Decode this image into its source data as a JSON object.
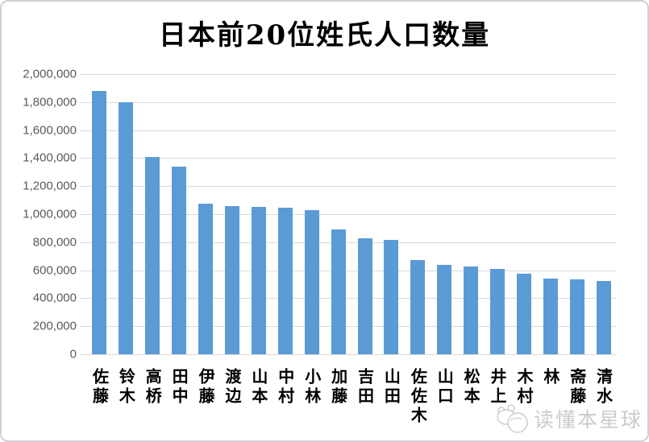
{
  "watermark": {
    "text": "读懂本星球"
  },
  "chart_data": {
    "type": "bar",
    "title": "日本前20位姓氏人口数量",
    "categories": [
      "佐藤",
      "铃木",
      "高桥",
      "田中",
      "伊藤",
      "渡边",
      "山本",
      "中村",
      "小林",
      "加藤",
      "吉田",
      "山田",
      "佐佐木",
      "山口",
      "松本",
      "井上",
      "木村",
      "林",
      "斋藤",
      "清水"
    ],
    "values": [
      1880000,
      1800000,
      1410000,
      1340000,
      1075000,
      1060000,
      1050000,
      1045000,
      1030000,
      890000,
      830000,
      815000,
      670000,
      640000,
      625000,
      610000,
      575000,
      540000,
      535000,
      525000
    ],
    "xlabel": "",
    "ylabel": "",
    "ylim": [
      0,
      2000000
    ],
    "ytick_step": 200000,
    "y_ticks": [
      "2,000,000",
      "1,800,000",
      "1,600,000",
      "1,400,000",
      "1,200,000",
      "1,000,000",
      "800,000",
      "600,000",
      "400,000",
      "200,000",
      "0"
    ],
    "grid": true,
    "legend_position": "none",
    "bar_color": "#5B9BD5",
    "gridline_color": "#D9D9D9",
    "tick_label_color": "#595959",
    "title_color": "#000000"
  }
}
